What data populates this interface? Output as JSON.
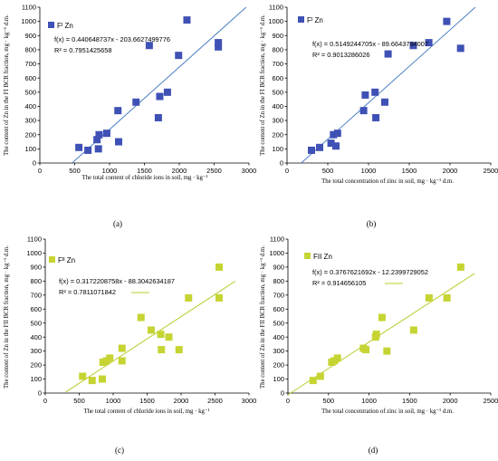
{
  "colors": {
    "blue_marker": "#3F51B5",
    "blue_trend": "#4A7FC1",
    "green_marker": "#C6D433",
    "green_trend": "#B9CC2E",
    "axis": "#000000"
  },
  "chart_data": [
    {
      "type": "scatter",
      "panel_label": "(a)",
      "legend": "Fᴵ Zn",
      "xlabel": "The total content of chloride ions in soil,  mg · kg⁻¹",
      "ylabel": "The content of Zn in the FI BCR fraction,  mg · kg⁻¹ d.m.",
      "xlim": [
        0,
        3000
      ],
      "ylim": [
        0,
        1100
      ],
      "xticks": [
        0,
        500,
        1000,
        1500,
        2000,
        2500,
        3000
      ],
      "yticks": [
        0,
        100,
        200,
        300,
        400,
        500,
        600,
        700,
        800,
        900,
        1000,
        1100
      ],
      "equation": "f(x) = 0.440648737x - 203.6627499776",
      "r2": "R² = 0.7951425658",
      "trendline": {
        "slope": 0.440648737,
        "intercept": -203.6627499776
      },
      "points": [
        {
          "x": 560,
          "y": 110
        },
        {
          "x": 690,
          "y": 90
        },
        {
          "x": 840,
          "y": 100
        },
        {
          "x": 820,
          "y": 165
        },
        {
          "x": 850,
          "y": 200
        },
        {
          "x": 960,
          "y": 210
        },
        {
          "x": 1130,
          "y": 150
        },
        {
          "x": 1120,
          "y": 370
        },
        {
          "x": 1380,
          "y": 430
        },
        {
          "x": 1570,
          "y": 830
        },
        {
          "x": 1700,
          "y": 320
        },
        {
          "x": 1720,
          "y": 470
        },
        {
          "x": 1830,
          "y": 500
        },
        {
          "x": 1990,
          "y": 760
        },
        {
          "x": 2110,
          "y": 1010
        },
        {
          "x": 2560,
          "y": 820
        },
        {
          "x": 2560,
          "y": 850
        }
      ]
    },
    {
      "type": "scatter",
      "panel_label": "(b)",
      "legend": "Fᴵ Zn",
      "xlabel": "The total concentration of zinc in soil,  mg · kg⁻¹ d.m.",
      "ylabel": "The content of Zn in the FI BCR fraction,  mg · kg⁻¹ d.m.",
      "xlim": [
        0,
        2500
      ],
      "ylim": [
        0,
        1100
      ],
      "xticks": [
        0,
        500,
        1000,
        1500,
        2000,
        2500
      ],
      "yticks": [
        0,
        100,
        200,
        300,
        400,
        500,
        600,
        700,
        800,
        900,
        1000,
        1100
      ],
      "equation": "f(x) = 0.5149244705x - 89.6643794007",
      "r2": "R² = 0.9013286026",
      "trendline": {
        "slope": 0.5149244705,
        "intercept": -89.6643794007
      },
      "points": [
        {
          "x": 300,
          "y": 90
        },
        {
          "x": 400,
          "y": 110
        },
        {
          "x": 540,
          "y": 140
        },
        {
          "x": 570,
          "y": 200
        },
        {
          "x": 600,
          "y": 120
        },
        {
          "x": 620,
          "y": 210
        },
        {
          "x": 940,
          "y": 370
        },
        {
          "x": 960,
          "y": 480
        },
        {
          "x": 1080,
          "y": 500
        },
        {
          "x": 1090,
          "y": 320
        },
        {
          "x": 1200,
          "y": 430
        },
        {
          "x": 1240,
          "y": 770
        },
        {
          "x": 1550,
          "y": 830
        },
        {
          "x": 1740,
          "y": 850
        },
        {
          "x": 1960,
          "y": 1000
        },
        {
          "x": 2130,
          "y": 810
        }
      ]
    },
    {
      "type": "scatter",
      "panel_label": "(c)",
      "legend": "Fᴵᴵ Zn",
      "xlabel": "The total content of chloride ions in soil,  mg · kg⁻¹",
      "ylabel": "The content of Zn in the FII BCR fraction,  mg · kg⁻¹ d.m.",
      "xlim": [
        0,
        3000
      ],
      "ylim": [
        0,
        1100
      ],
      "xticks": [
        0,
        500,
        1000,
        1500,
        2000,
        2500,
        3000
      ],
      "yticks": [
        0,
        100,
        200,
        300,
        400,
        500,
        600,
        700,
        800,
        900,
        1000,
        1100
      ],
      "equation": "f(x) = 0.3172208758x - 88.3042634187",
      "r2": "R² = 0.7811071842",
      "trendline": {
        "slope": 0.3172208758,
        "intercept": -88.3042634187
      },
      "points": [
        {
          "x": 550,
          "y": 120
        },
        {
          "x": 690,
          "y": 90
        },
        {
          "x": 840,
          "y": 100
        },
        {
          "x": 850,
          "y": 220
        },
        {
          "x": 900,
          "y": 230
        },
        {
          "x": 950,
          "y": 250
        },
        {
          "x": 1130,
          "y": 230
        },
        {
          "x": 1130,
          "y": 320
        },
        {
          "x": 1410,
          "y": 540
        },
        {
          "x": 1560,
          "y": 450
        },
        {
          "x": 1700,
          "y": 420
        },
        {
          "x": 1710,
          "y": 310
        },
        {
          "x": 1820,
          "y": 400
        },
        {
          "x": 1970,
          "y": 310
        },
        {
          "x": 2110,
          "y": 680
        },
        {
          "x": 2560,
          "y": 680
        },
        {
          "x": 2560,
          "y": 900
        }
      ]
    },
    {
      "type": "scatter",
      "panel_label": "(d)",
      "legend": "FII Zn",
      "xlabel": "The total concentration of zinc in soil,  mg · kg⁻¹ d.m.",
      "ylabel": "The content of Zn in the FII BCR fraction,  mg · kg⁻¹ d.m.",
      "xlim": [
        0,
        2500
      ],
      "ylim": [
        0,
        1100
      ],
      "xticks": [
        0,
        500,
        1000,
        1500,
        2000,
        2500
      ],
      "yticks": [
        0,
        100,
        200,
        300,
        400,
        500,
        600,
        700,
        800,
        900,
        1000,
        1100
      ],
      "equation": "f(x) = 0.3767621692x - 12.2399729052",
      "r2": "R² = 0.914656105",
      "trendline": {
        "slope": 0.3767621692,
        "intercept": -12.2399729052
      },
      "points": [
        {
          "x": 310,
          "y": 90
        },
        {
          "x": 400,
          "y": 120
        },
        {
          "x": 540,
          "y": 220
        },
        {
          "x": 570,
          "y": 230
        },
        {
          "x": 610,
          "y": 250
        },
        {
          "x": 930,
          "y": 320
        },
        {
          "x": 960,
          "y": 310
        },
        {
          "x": 1080,
          "y": 400
        },
        {
          "x": 1090,
          "y": 420
        },
        {
          "x": 1160,
          "y": 540
        },
        {
          "x": 1220,
          "y": 300
        },
        {
          "x": 1550,
          "y": 450
        },
        {
          "x": 1740,
          "y": 680
        },
        {
          "x": 1960,
          "y": 680
        },
        {
          "x": 2130,
          "y": 900
        }
      ]
    }
  ]
}
